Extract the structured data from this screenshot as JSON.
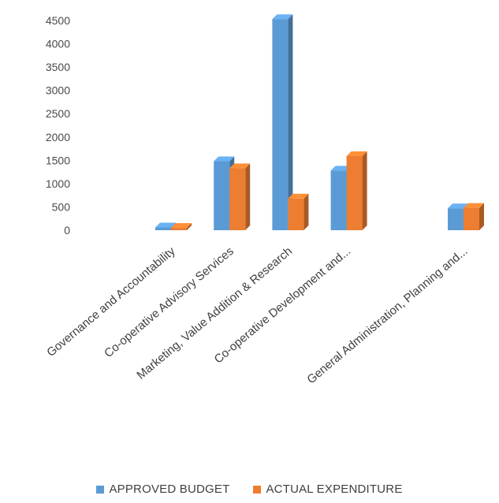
{
  "chart_data": {
    "type": "bar",
    "title": "",
    "xlabel": "",
    "ylabel": "",
    "ylim": [
      0,
      4500
    ],
    "yticks": [
      "0",
      "500",
      "1000",
      "1500",
      "2000",
      "2500",
      "3000",
      "3500",
      "4000",
      "4500"
    ],
    "categories": [
      "Governance and Accountability",
      "Co-operative Advisory Services",
      "Marketing, Value Addition & Research",
      "Co-operative Development and...",
      "",
      "General Administration, Planning and..."
    ],
    "series": [
      {
        "name": "APPROVED BUDGET",
        "color": "#5b9bd5",
        "values": [
          60,
          1480,
          4530,
          1280,
          0,
          470
        ]
      },
      {
        "name": "ACTUAL EXPENDITURE",
        "color": "#ed7d31",
        "values": [
          50,
          1330,
          680,
          1590,
          0,
          480
        ]
      }
    ],
    "grid": false,
    "legend_position": "bottom",
    "style": "3d-clustered"
  }
}
